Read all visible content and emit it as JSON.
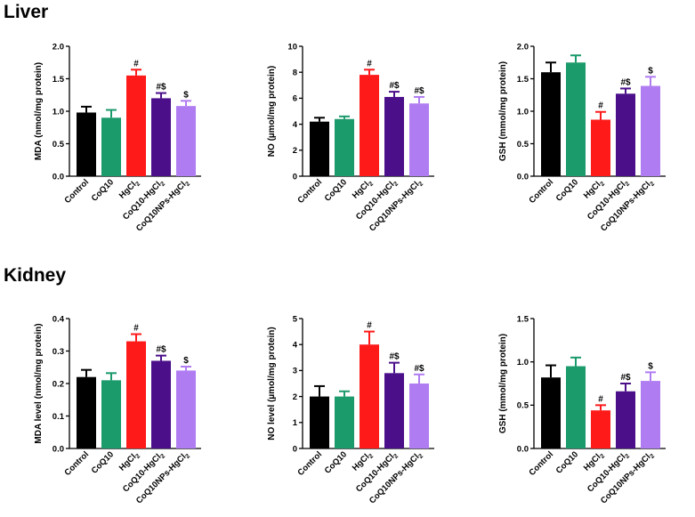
{
  "sections": {
    "liver": "Liver",
    "kidney": "Kidney"
  },
  "colors": {
    "Control": "#000000",
    "CoQ10": "#1b9a6b",
    "HgCl2": "#ff1a1a",
    "CoQ10-HgCl2": "#4b0f8a",
    "CoQ10NPs-HgCl2": "#b07cf2"
  },
  "categories": [
    {
      "main": "Control",
      "sub": "",
      "tail": ""
    },
    {
      "main": "CoQ10",
      "sub": "",
      "tail": ""
    },
    {
      "main": "HgCl",
      "sub": "2",
      "tail": ""
    },
    {
      "main": "CoQ10-HgCl",
      "sub": "2",
      "tail": ""
    },
    {
      "main": "CoQ10NPs-HgCl",
      "sub": "2",
      "tail": ""
    }
  ],
  "chart_data": [
    {
      "type": "bar",
      "section": "Liver",
      "ylabel": "MDA (nmol/mg protein)",
      "ylim": [
        0,
        2.0
      ],
      "yticks": [
        "0.0",
        "0.5",
        "1.0",
        "1.5",
        "2.0"
      ],
      "categories": [
        "Control",
        "CoQ10",
        "HgCl2",
        "CoQ10-HgCl2",
        "CoQ10NPs-HgCl2"
      ],
      "values": [
        0.98,
        0.9,
        1.55,
        1.2,
        1.08
      ],
      "errors": [
        0.09,
        0.12,
        0.09,
        0.08,
        0.08
      ],
      "annotations": [
        "",
        "",
        "#",
        "#$",
        "$"
      ]
    },
    {
      "type": "bar",
      "section": "Liver",
      "ylabel": "NO (µmol/mg protein)",
      "ylim": [
        0,
        10
      ],
      "yticks": [
        "0",
        "2",
        "4",
        "6",
        "8",
        "10"
      ],
      "categories": [
        "Control",
        "CoQ10",
        "HgCl2",
        "CoQ10-HgCl2",
        "CoQ10NPs-HgCl2"
      ],
      "values": [
        4.2,
        4.4,
        7.8,
        6.1,
        5.6
      ],
      "errors": [
        0.3,
        0.2,
        0.4,
        0.4,
        0.5
      ],
      "annotations": [
        "",
        "",
        "#",
        "#$",
        "#$"
      ]
    },
    {
      "type": "bar",
      "section": "Liver",
      "ylabel": "GSH (mmol/mg protein)",
      "ylim": [
        0,
        2.0
      ],
      "yticks": [
        "0.0",
        "0.5",
        "1.0",
        "1.5",
        "2.0"
      ],
      "categories": [
        "Control",
        "CoQ10",
        "HgCl2",
        "CoQ10-HgCl2",
        "CoQ10NPs-HgCl2"
      ],
      "values": [
        1.6,
        1.75,
        0.87,
        1.27,
        1.39
      ],
      "errors": [
        0.15,
        0.11,
        0.12,
        0.08,
        0.14
      ],
      "annotations": [
        "",
        "",
        "#",
        "#$",
        "$"
      ]
    },
    {
      "type": "bar",
      "section": "Kidney",
      "ylabel": "MDA level (nmol/mg protein)",
      "ylim": [
        0,
        0.4
      ],
      "yticks": [
        "0.0",
        "0.1",
        "0.2",
        "0.3",
        "0.4"
      ],
      "categories": [
        "Control",
        "CoQ10",
        "HgCl2",
        "CoQ10-HgCl2",
        "CoQ10NPs-HgCl2"
      ],
      "values": [
        0.22,
        0.21,
        0.33,
        0.27,
        0.24
      ],
      "errors": [
        0.022,
        0.022,
        0.022,
        0.016,
        0.012
      ],
      "annotations": [
        "",
        "",
        "#",
        "#$",
        "$"
      ]
    },
    {
      "type": "bar",
      "section": "Kidney",
      "ylabel": "NO level (µmol/mg protein)",
      "ylim": [
        0,
        5
      ],
      "yticks": [
        "0",
        "1",
        "2",
        "3",
        "4",
        "5"
      ],
      "categories": [
        "Control",
        "CoQ10",
        "HgCl2",
        "CoQ10-HgCl2",
        "CoQ10NPs-HgCl2"
      ],
      "values": [
        2.0,
        2.0,
        4.0,
        2.9,
        2.5
      ],
      "errors": [
        0.4,
        0.2,
        0.5,
        0.4,
        0.35
      ],
      "annotations": [
        "",
        "",
        "#",
        "#$",
        "#$"
      ]
    },
    {
      "type": "bar",
      "section": "Kidney",
      "ylabel": "GSH (mmol/mg protein)",
      "ylim": [
        0,
        1.5
      ],
      "yticks": [
        "0.0",
        "0.5",
        "1.0",
        "1.5"
      ],
      "categories": [
        "Control",
        "CoQ10",
        "HgCl2",
        "CoQ10-HgCl2",
        "CoQ10NPs-HgCl2"
      ],
      "values": [
        0.82,
        0.95,
        0.44,
        0.66,
        0.78
      ],
      "errors": [
        0.14,
        0.1,
        0.06,
        0.09,
        0.1
      ],
      "annotations": [
        "",
        "",
        "#",
        "#$",
        "$"
      ]
    }
  ]
}
